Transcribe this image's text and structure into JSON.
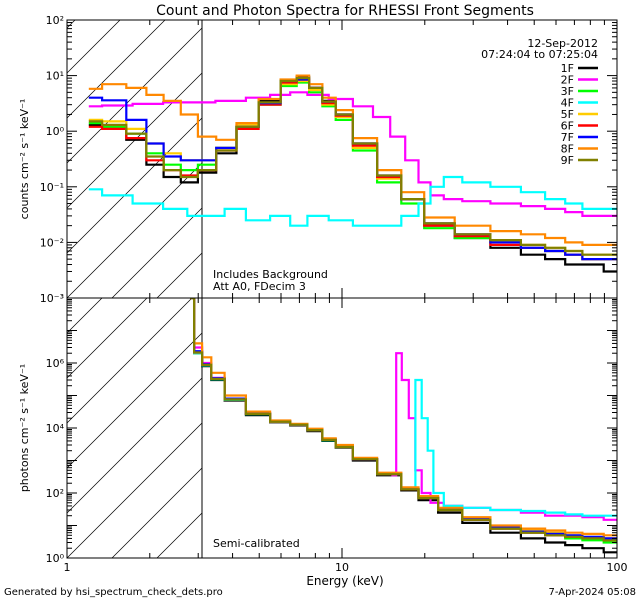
{
  "title": "Count and Photon Spectra for RHESSI Front Segments",
  "footer_left": "Generated by hsi_spectrum_check_dets.pro",
  "footer_right": "7-Apr-2024 05:08",
  "chart_data": [
    {
      "type": "line",
      "panel": "top",
      "xscale": "log",
      "yscale": "log",
      "xlim": [
        1,
        100
      ],
      "ylim": [
        0.001,
        100
      ],
      "ylabel": "counts cm⁻² s⁻¹ keV⁻¹",
      "date": "12-Sep-2012",
      "time_range": "07:24:04 to 07:25:04",
      "annotations": [
        "Includes Background",
        "Att A0, FDecim 3"
      ],
      "ytick_labels": [
        "10⁻³",
        "10⁻²",
        "10⁻¹",
        "10⁰",
        "10¹",
        "10²"
      ],
      "legend_position": "top-right",
      "excluded_region_below_keV": 3,
      "series": [
        {
          "name": "1F",
          "color": "#000000",
          "x": [
            1.2,
            1.5,
            1.8,
            2.1,
            2.4,
            2.8,
            3.2,
            3.8,
            4.5,
            5.5,
            6.5,
            7.2,
            8,
            9,
            10,
            12,
            15,
            18,
            22,
            30,
            40,
            50,
            60,
            70,
            80,
            100
          ],
          "y": [
            1.3,
            1.1,
            0.7,
            0.25,
            0.15,
            0.12,
            0.18,
            0.4,
            1.2,
            3.5,
            8,
            9.5,
            6,
            3.5,
            2,
            0.6,
            0.15,
            0.06,
            0.02,
            0.012,
            0.008,
            0.006,
            0.005,
            0.004,
            0.004,
            0.003
          ]
        },
        {
          "name": "2F",
          "color": "#ff00ff",
          "x": [
            1.2,
            1.5,
            2,
            2.5,
            3,
            4,
            5,
            6,
            7,
            8,
            10,
            12,
            14,
            16,
            18,
            20,
            22,
            25,
            30,
            40,
            50,
            60,
            70,
            80,
            100
          ],
          "y": [
            2.8,
            2.9,
            3.1,
            3.3,
            3.3,
            3.5,
            4,
            4.5,
            5,
            4.5,
            3.8,
            2.8,
            1.8,
            0.8,
            0.3,
            0.12,
            0.07,
            0.06,
            0.055,
            0.05,
            0.045,
            0.04,
            0.035,
            0.03,
            0.03
          ]
        },
        {
          "name": "3F",
          "color": "#00ff00",
          "x": [
            1.2,
            1.5,
            1.8,
            2.1,
            2.4,
            2.8,
            3.2,
            3.8,
            4.5,
            5.5,
            6.5,
            7.2,
            8,
            9,
            10,
            12,
            15,
            18,
            22,
            30,
            40,
            50,
            60,
            70,
            80,
            100
          ],
          "y": [
            1.4,
            1.2,
            0.9,
            0.4,
            0.25,
            0.2,
            0.25,
            0.5,
            1.2,
            3,
            6.5,
            7.5,
            5,
            2.8,
            1.6,
            0.45,
            0.12,
            0.05,
            0.018,
            0.012,
            0.01,
            0.008,
            0.007,
            0.006,
            0.005,
            0.005
          ]
        },
        {
          "name": "4F",
          "color": "#00ffff",
          "x": [
            1.2,
            1.5,
            2,
            2.5,
            3,
            3.5,
            4,
            5,
            6,
            7,
            8,
            10,
            12,
            15,
            18,
            20,
            22,
            25,
            30,
            40,
            50,
            60,
            70,
            80,
            100
          ],
          "y": [
            0.09,
            0.07,
            0.05,
            0.04,
            0.03,
            0.03,
            0.04,
            0.025,
            0.03,
            0.02,
            0.03,
            0.025,
            0.02,
            0.02,
            0.03,
            0.05,
            0.1,
            0.15,
            0.12,
            0.1,
            0.08,
            0.06,
            0.05,
            0.04,
            0.04
          ]
        },
        {
          "name": "5F",
          "color": "#ffcc00",
          "x": [
            1.2,
            1.5,
            1.8,
            2.1,
            2.4,
            2.8,
            3.2,
            3.8,
            4.5,
            5.5,
            6.5,
            7.2,
            8,
            9,
            10,
            12,
            15,
            18,
            22,
            30,
            40,
            50,
            60,
            70,
            80,
            100
          ],
          "y": [
            1.6,
            1.5,
            1.1,
            0.6,
            0.4,
            0.3,
            0.3,
            0.5,
            1.3,
            3.2,
            7,
            8,
            5.5,
            3,
            1.8,
            0.5,
            0.14,
            0.06,
            0.022,
            0.014,
            0.01,
            0.009,
            0.008,
            0.007,
            0.006,
            0.006
          ]
        },
        {
          "name": "6F",
          "color": "#ff0000",
          "x": [
            1.2,
            1.5,
            1.8,
            2.1,
            2.4,
            2.8,
            3.2,
            3.8,
            4.5,
            5.5,
            6.5,
            7.2,
            8,
            9,
            10,
            12,
            15,
            18,
            22,
            30,
            40,
            50,
            60,
            70,
            80,
            100
          ],
          "y": [
            1.2,
            1.1,
            0.75,
            0.3,
            0.2,
            0.16,
            0.2,
            0.45,
            1.1,
            3,
            7.5,
            8.5,
            6,
            3.2,
            1.9,
            0.55,
            0.15,
            0.06,
            0.02,
            0.013,
            0.009,
            0.008,
            0.007,
            0.006,
            0.005,
            0.005
          ]
        },
        {
          "name": "7F",
          "color": "#0000ff",
          "x": [
            1.2,
            1.5,
            1.8,
            2.1,
            2.4,
            2.8,
            3.2,
            3.8,
            4.5,
            5.5,
            6.5,
            7.2,
            8,
            9,
            10,
            12,
            15,
            18,
            22,
            30,
            40,
            50,
            60,
            70,
            80,
            100
          ],
          "y": [
            4,
            3.6,
            1.6,
            0.6,
            0.35,
            0.3,
            0.3,
            0.5,
            1.2,
            3.2,
            8,
            8.5,
            6,
            3.4,
            2,
            0.6,
            0.16,
            0.06,
            0.022,
            0.014,
            0.01,
            0.008,
            0.007,
            0.006,
            0.005,
            0.005
          ]
        },
        {
          "name": "8F",
          "color": "#ff8800",
          "x": [
            1.2,
            1.5,
            1.8,
            2.1,
            2.4,
            2.8,
            3.2,
            3.8,
            4.5,
            5.5,
            6.5,
            7.2,
            8,
            9,
            10,
            12,
            15,
            18,
            22,
            30,
            40,
            50,
            60,
            70,
            80,
            100
          ],
          "y": [
            5.8,
            7,
            6,
            4.5,
            3.5,
            2,
            0.8,
            0.7,
            1.4,
            3.8,
            8.5,
            10,
            7,
            4,
            2.4,
            0.75,
            0.2,
            0.08,
            0.028,
            0.02,
            0.016,
            0.014,
            0.012,
            0.01,
            0.009,
            0.009
          ]
        },
        {
          "name": "9F",
          "color": "#808000",
          "x": [
            1.2,
            1.5,
            1.8,
            2.1,
            2.4,
            2.8,
            3.2,
            3.8,
            4.5,
            5.5,
            6.5,
            7.2,
            8,
            9,
            10,
            12,
            15,
            18,
            22,
            30,
            40,
            50,
            60,
            70,
            80,
            100
          ],
          "y": [
            1.5,
            1.3,
            0.9,
            0.35,
            0.2,
            0.15,
            0.2,
            0.45,
            1.2,
            3.3,
            8,
            9,
            6,
            3.4,
            2,
            0.6,
            0.16,
            0.06,
            0.022,
            0.014,
            0.011,
            0.009,
            0.008,
            0.007,
            0.006,
            0.006
          ]
        }
      ]
    },
    {
      "type": "line",
      "panel": "bottom",
      "xscale": "log",
      "yscale": "log",
      "xlim": [
        1,
        100
      ],
      "ylim": [
        0.01,
        1000000
      ],
      "xlabel": "Energy (keV)",
      "ylabel": "photons cm⁻² s⁻¹ keV⁻¹",
      "xtick_labels": [
        "1",
        "10",
        "100"
      ],
      "ytick_labels": [
        "10⁰",
        "10²",
        "10⁴",
        "10⁶"
      ],
      "annotations": [
        "Semi-calibrated"
      ],
      "excluded_region_below_keV": 3,
      "series": [
        {
          "name": "1F",
          "color": "#000000",
          "x": [
            2.8,
            3,
            3.2,
            3.5,
            4,
            5,
            6,
            7,
            8,
            9,
            10,
            12,
            15,
            18,
            20,
            25,
            30,
            40,
            50,
            60,
            70,
            80,
            100
          ],
          "y": [
            1000000,
            20000,
            8000,
            3000,
            700,
            250,
            150,
            120,
            80,
            40,
            25,
            10,
            3.5,
            1.2,
            0.6,
            0.25,
            0.12,
            0.06,
            0.04,
            0.03,
            0.025,
            0.02,
            0.015
          ]
        },
        {
          "name": "2F",
          "color": "#ff00ff",
          "x": [
            2.8,
            3,
            3.2,
            3.5,
            4,
            5,
            6,
            7,
            8,
            9,
            10,
            12,
            15,
            15.5,
            16,
            17,
            18,
            19,
            20,
            22,
            25,
            30,
            40,
            50,
            60,
            70,
            80,
            100
          ],
          "y": [
            1000000,
            30000,
            10000,
            3500,
            800,
            280,
            160,
            130,
            90,
            45,
            28,
            11,
            4,
            3.5,
            20000,
            3000,
            200,
            5,
            1,
            0.5,
            0.4,
            0.35,
            0.3,
            0.25,
            0.2,
            0.2,
            0.18,
            0.15
          ]
        },
        {
          "name": "3F",
          "color": "#00ff00",
          "x": [
            2.8,
            3,
            3.2,
            3.5,
            4,
            5,
            6,
            7,
            8,
            9,
            10,
            12,
            15,
            18,
            20,
            25,
            30,
            40,
            50,
            60,
            70,
            80,
            100
          ],
          "y": [
            1000000,
            20000,
            8500,
            3200,
            750,
            270,
            155,
            125,
            85,
            42,
            26,
            11,
            3.8,
            1.3,
            0.7,
            0.3,
            0.15,
            0.08,
            0.06,
            0.05,
            0.04,
            0.035,
            0.03
          ]
        },
        {
          "name": "4F",
          "color": "#00ffff",
          "x": [
            2.8,
            3,
            3.2,
            3.5,
            4,
            5,
            6,
            7,
            8,
            9,
            10,
            12,
            15,
            18,
            19,
            20,
            21,
            22,
            25,
            30,
            40,
            50,
            60,
            70,
            80,
            100
          ],
          "y": [
            1000000,
            20000,
            8500,
            3200,
            750,
            270,
            155,
            125,
            85,
            42,
            26,
            11,
            3.8,
            1.4,
            3000,
            200,
            20,
            1,
            0.4,
            0.35,
            0.3,
            0.28,
            0.25,
            0.22,
            0.2,
            0.2
          ]
        },
        {
          "name": "5F",
          "color": "#ffcc00",
          "x": [
            2.8,
            3,
            3.2,
            3.5,
            4,
            5,
            6,
            7,
            8,
            9,
            10,
            12,
            15,
            18,
            20,
            25,
            30,
            40,
            50,
            60,
            70,
            80,
            100
          ],
          "y": [
            1000000,
            22000,
            9000,
            3300,
            780,
            275,
            158,
            128,
            88,
            44,
            27,
            11,
            3.9,
            1.35,
            0.72,
            0.32,
            0.16,
            0.09,
            0.07,
            0.06,
            0.05,
            0.045,
            0.04
          ]
        },
        {
          "name": "6F",
          "color": "#ff0000",
          "x": [
            2.8,
            3,
            3.2,
            3.5,
            4,
            5,
            6,
            7,
            8,
            9,
            10,
            12,
            15,
            18,
            20,
            25,
            30,
            40,
            50,
            60,
            70,
            80,
            100
          ],
          "y": [
            1000000,
            21000,
            8800,
            3250,
            760,
            272,
            156,
            126,
            86,
            43,
            26,
            11,
            3.8,
            1.3,
            0.7,
            0.3,
            0.15,
            0.08,
            0.06,
            0.05,
            0.045,
            0.04,
            0.035
          ]
        },
        {
          "name": "7F",
          "color": "#0000ff",
          "x": [
            2.8,
            3,
            3.2,
            3.5,
            4,
            5,
            6,
            7,
            8,
            9,
            10,
            12,
            15,
            18,
            20,
            25,
            30,
            40,
            50,
            60,
            70,
            80,
            100
          ],
          "y": [
            1000000,
            23000,
            9200,
            3400,
            800,
            280,
            160,
            128,
            88,
            44,
            27,
            11,
            3.9,
            1.35,
            0.72,
            0.32,
            0.16,
            0.09,
            0.065,
            0.055,
            0.05,
            0.045,
            0.04
          ]
        },
        {
          "name": "8F",
          "color": "#ff8800",
          "x": [
            2.8,
            3,
            3.2,
            3.5,
            4,
            5,
            6,
            7,
            8,
            9,
            10,
            12,
            15,
            18,
            20,
            25,
            30,
            40,
            50,
            60,
            70,
            80,
            100
          ],
          "y": [
            1000000,
            40000,
            15000,
            5000,
            1000,
            320,
            170,
            135,
            95,
            48,
            30,
            12,
            4.2,
            1.5,
            0.8,
            0.35,
            0.18,
            0.1,
            0.08,
            0.07,
            0.06,
            0.055,
            0.05
          ]
        },
        {
          "name": "9F",
          "color": "#808000",
          "x": [
            2.8,
            3,
            3.2,
            3.5,
            4,
            5,
            6,
            7,
            8,
            9,
            10,
            12,
            15,
            18,
            20,
            25,
            30,
            40,
            50,
            60,
            70,
            80,
            100
          ],
          "y": [
            1000000,
            21000,
            8800,
            3250,
            760,
            272,
            156,
            126,
            86,
            43,
            26,
            11,
            3.8,
            1.3,
            0.7,
            0.3,
            0.15,
            0.08,
            0.06,
            0.05,
            0.045,
            0.04,
            0.035
          ]
        }
      ]
    }
  ]
}
